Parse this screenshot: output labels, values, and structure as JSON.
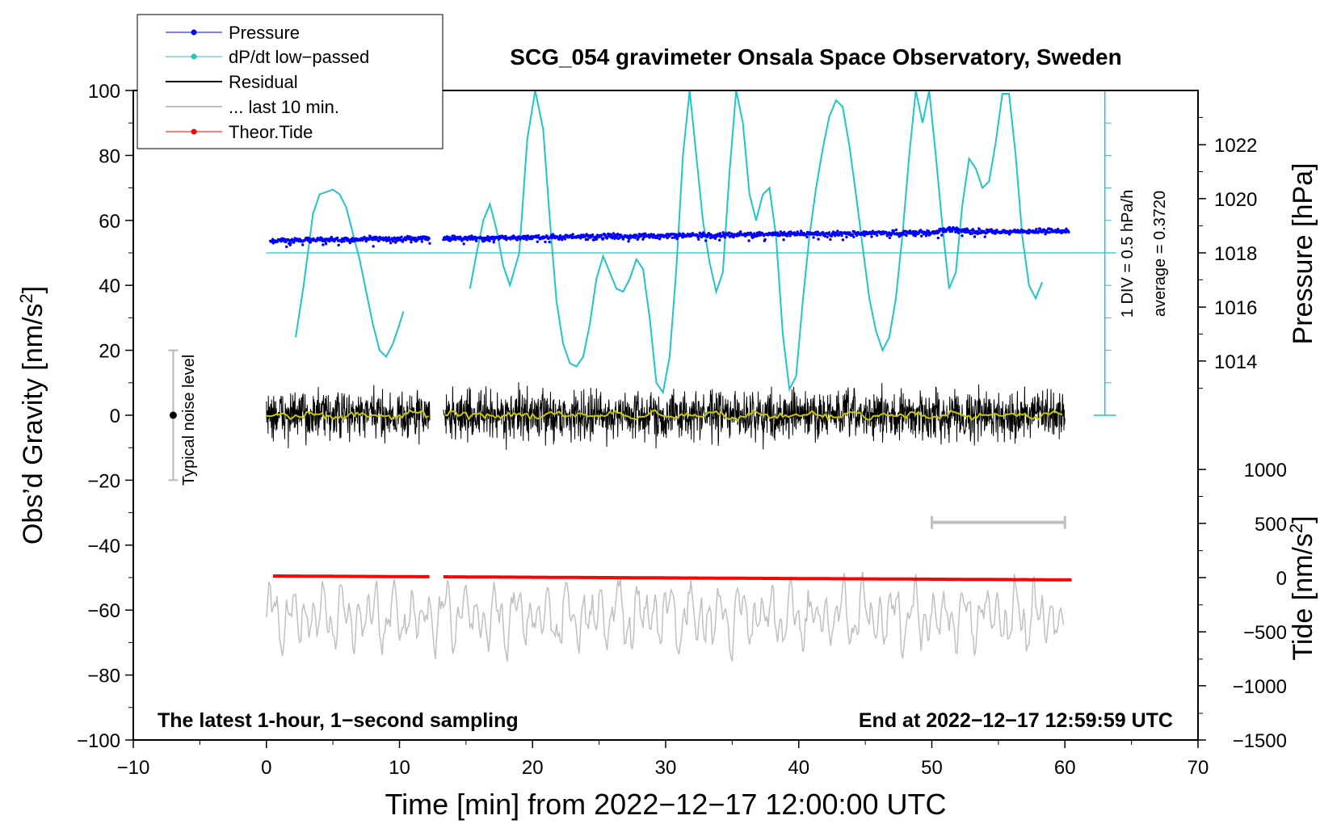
{
  "chart_data": {
    "type": "line",
    "title": "SCG_054 gravimeter Onsala Space Observatory, Sweden",
    "xlabel": "Time [min] from 2022−12−17 12:00:00 UTC",
    "ylabel_left": "Obs’d Gravity [nm/s",
    "ylabel_left_close": "]",
    "ylabel_pressure": "Pressure [hPa]",
    "ylabel_tide": "Tide [nm/s",
    "ylabel_tide_close": "]",
    "superscript": "2",
    "xlim": [
      -10,
      70
    ],
    "xticks": [
      -10,
      0,
      10,
      20,
      30,
      40,
      50,
      60,
      70
    ],
    "xtick_labels": [
      "−10",
      "0",
      "10",
      "20",
      "30",
      "40",
      "50",
      "60",
      "70"
    ],
    "ylim": [
      -100,
      100
    ],
    "yticks": [
      -100,
      -80,
      -60,
      -40,
      -20,
      0,
      20,
      40,
      60,
      80,
      100
    ],
    "ytick_labels": [
      "−100",
      "−80",
      "−60",
      "−40",
      "−20",
      "0",
      "20",
      "40",
      "60",
      "80",
      "100"
    ],
    "pressure_ticks": [
      1014,
      1016,
      1018,
      1020,
      1022
    ],
    "pressure_ticks_gravity_equiv": [
      16.7,
      33.3,
      50,
      66.7,
      83.3
    ],
    "tide_ticks": [
      1000,
      500,
      0,
      -500,
      -1000,
      -1500
    ],
    "tide_tick_labels": [
      "1000",
      "500",
      "0",
      "−500",
      "−1000",
      "−1500"
    ],
    "tide_ticks_gravity_equiv": [
      -16.7,
      -33.3,
      -50,
      -66.7,
      -83.3,
      -100
    ],
    "annotation_left": "The latest 1-hour, 1−second sampling",
    "annotation_right": "End at 2022−12−17 12:59:59 UTC",
    "noise_label": "Typical noise level",
    "noise_bar": {
      "x": -7,
      "low": -20,
      "high": 20
    },
    "scale_label_1": "1 DIV = 0.5 hPa/h",
    "scale_label_2": "average = 0.3720",
    "dpdt_axis_x": 63,
    "dpdt_baseline": 50,
    "last10_bar": {
      "x_start": 50,
      "x_end": 60,
      "y": -33
    },
    "gaps": [
      [
        12.3,
        13.3
      ]
    ],
    "legend": [
      {
        "label": "Pressure",
        "color": "#0000ff",
        "marker": true
      },
      {
        "label": "dP/dt low−passed",
        "color": "#20c5c5",
        "marker": true
      },
      {
        "label": "Residual",
        "color": "#000000",
        "marker": false
      },
      {
        "label": "... last 10 min.",
        "color": "#c0c0c0",
        "marker": false
      },
      {
        "label": "Theor.Tide",
        "color": "#ff0000",
        "marker": true
      }
    ],
    "series": [
      {
        "name": "Pressure",
        "color": "#0000ff",
        "x_range": [
          0.3,
          60.3
        ],
        "y_start": 53.8,
        "y_end": 56.8
      },
      {
        "name": "dP/dt low-passed",
        "color": "#20c5c5",
        "segments": [
          [
            [
              2.2,
              24
            ],
            [
              2.8,
              40
            ],
            [
              3.5,
              62
            ],
            [
              4,
              68
            ],
            [
              5,
              69.5
            ],
            [
              5.5,
              68
            ],
            [
              6,
              64
            ],
            [
              6.5,
              56
            ],
            [
              7,
              48
            ],
            [
              7.5,
              38
            ],
            [
              8,
              28
            ],
            [
              8.5,
              20
            ],
            [
              9,
              18
            ],
            [
              9.5,
              22
            ],
            [
              10,
              28
            ],
            [
              10.3,
              32
            ]
          ],
          [
            [
              15.3,
              39
            ],
            [
              15.8,
              50
            ],
            [
              16.3,
              60
            ],
            [
              16.8,
              65
            ],
            [
              17.3,
              57
            ],
            [
              17.8,
              46
            ],
            [
              18.3,
              40
            ],
            [
              19,
              50
            ],
            [
              19.6,
              85
            ],
            [
              20.2,
              102
            ],
            [
              20.8,
              88
            ],
            [
              21.3,
              60
            ],
            [
              21.8,
              35
            ],
            [
              22.3,
              22
            ],
            [
              22.8,
              16
            ],
            [
              23.3,
              15
            ],
            [
              23.8,
              18
            ],
            [
              24.3,
              28
            ],
            [
              24.8,
              42
            ],
            [
              25.3,
              49
            ],
            [
              25.8,
              44
            ],
            [
              26.3,
              39
            ],
            [
              26.8,
              38
            ],
            [
              27.3,
              42
            ],
            [
              27.8,
              48
            ],
            [
              28.3,
              45
            ],
            [
              28.8,
              30
            ],
            [
              29.3,
              10
            ],
            [
              29.8,
              7
            ],
            [
              30.3,
              18
            ],
            [
              30.8,
              45
            ],
            [
              31.3,
              80
            ],
            [
              31.8,
              102
            ],
            [
              32.3,
              80
            ],
            [
              32.8,
              60
            ],
            [
              33.3,
              47
            ],
            [
              33.8,
              38
            ],
            [
              34.3,
              44
            ],
            [
              34.8,
              75
            ],
            [
              35.3,
              101
            ],
            [
              35.8,
              90
            ],
            [
              36.3,
              68
            ],
            [
              36.8,
              60
            ],
            [
              37.3,
              68
            ],
            [
              37.8,
              70
            ],
            [
              38.3,
              55
            ],
            [
              38.8,
              25
            ],
            [
              39.3,
              8
            ],
            [
              39.8,
              12
            ],
            [
              40.3,
              35
            ],
            [
              40.8,
              55
            ],
            [
              41.3,
              70
            ],
            [
              41.8,
              82
            ],
            [
              42.3,
              92
            ],
            [
              42.8,
              97
            ],
            [
              43.3,
              95
            ],
            [
              43.8,
              83
            ],
            [
              44.3,
              68
            ],
            [
              44.8,
              52
            ],
            [
              45.3,
              36
            ],
            [
              45.8,
              26
            ],
            [
              46.3,
              20
            ],
            [
              46.8,
              24
            ],
            [
              47.3,
              36
            ],
            [
              47.8,
              56
            ],
            [
              48.3,
              80
            ],
            [
              48.8,
              101
            ],
            [
              49.3,
              90
            ],
            [
              49.8,
              102
            ],
            [
              50.3,
              80
            ],
            [
              50.8,
              58
            ],
            [
              51.3,
              39
            ],
            [
              51.8,
              44
            ],
            [
              52.3,
              65
            ],
            [
              52.8,
              79
            ],
            [
              53.3,
              76
            ],
            [
              53.8,
              70
            ],
            [
              54.3,
              72
            ],
            [
              54.8,
              84
            ],
            [
              55.3,
              99
            ],
            [
              55.8,
              99
            ],
            [
              56.3,
              80
            ],
            [
              56.8,
              55
            ],
            [
              57.3,
              40
            ],
            [
              57.8,
              36
            ],
            [
              58.3,
              41
            ]
          ]
        ]
      },
      {
        "name": "Residual",
        "color": "#000000",
        "x_range": [
          0,
          60
        ],
        "mean": 0,
        "amplitude": 12
      },
      {
        "name": "Residual smoothed",
        "color": "#c8c800",
        "x_range": [
          0,
          60
        ],
        "mean": 0
      },
      {
        "name": "Theor.Tide",
        "color": "#ff0000",
        "x_range": [
          0.5,
          60.5
        ],
        "y_start": -49.5,
        "y_end": -50.7
      },
      {
        "name": "... last 10 min.",
        "color": "#c0c0c0",
        "x_range": [
          0,
          60
        ],
        "mean": -62,
        "amplitude": 12
      }
    ]
  }
}
